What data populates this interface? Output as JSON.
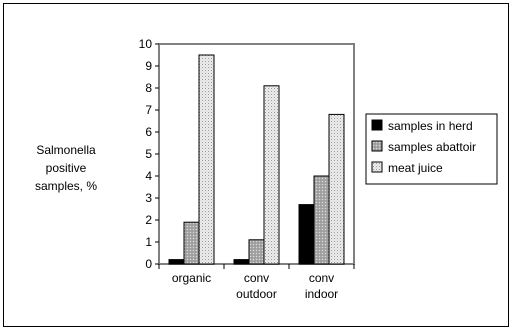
{
  "chart_data": {
    "type": "bar",
    "categories": [
      "organic",
      "conv outdoor",
      "conv indoor"
    ],
    "category_lines": [
      [
        "organic"
      ],
      [
        "conv",
        "outdoor"
      ],
      [
        "conv",
        "indoor"
      ]
    ],
    "series": [
      {
        "name": "samples in herd",
        "values": [
          0.2,
          0.2,
          2.7
        ],
        "color": "#000000",
        "pattern": "solid"
      },
      {
        "name": "samples abattoir",
        "values": [
          1.9,
          1.1,
          4.0
        ],
        "color": "#b3b3b3",
        "pattern": "dots-light"
      },
      {
        "name": "meat juice",
        "values": [
          9.5,
          8.1,
          6.8
        ],
        "color": "#e6e6e6",
        "pattern": "dots-fine"
      }
    ],
    "ylabel_lines": [
      "Salmonella",
      "positive",
      "samples, %"
    ],
    "ylim": [
      0,
      10
    ],
    "yticks": [
      0,
      1,
      2,
      3,
      4,
      5,
      6,
      7,
      8,
      9,
      10
    ],
    "grid": false,
    "legend_position": "right"
  }
}
